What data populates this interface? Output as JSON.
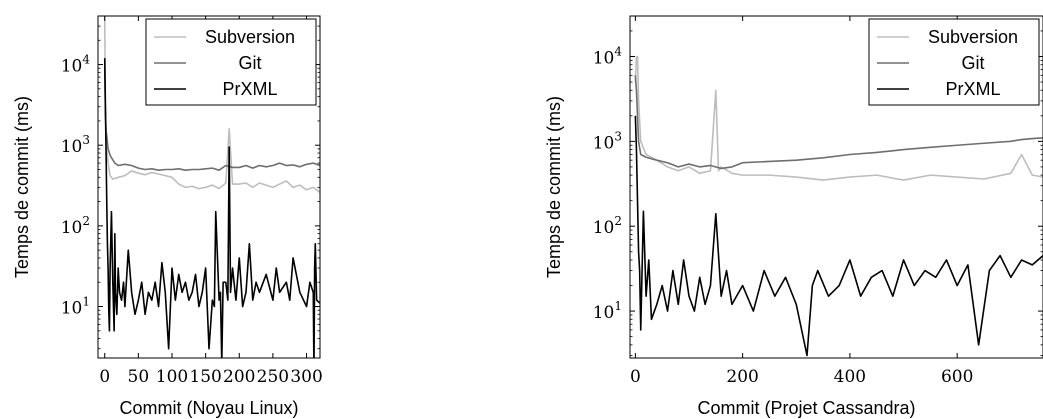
{
  "chart_data": [
    {
      "type": "line",
      "title": "",
      "xlabel": "Commit (Noyau Linux)",
      "ylabel": "Temps de commit (ms)",
      "xscale": "linear",
      "yscale": "log",
      "xlim": [
        -10,
        320
      ],
      "ylim": [
        2.3,
        40000
      ],
      "xticks": [
        0,
        50,
        100,
        150,
        200,
        250,
        300
      ],
      "xtick_labels": [
        "0",
        "50",
        "100",
        "150",
        "200",
        "250",
        "300"
      ],
      "yticks": [
        10,
        100,
        1000,
        10000
      ],
      "ytick_bases": [
        "10",
        "10",
        "10",
        "10"
      ],
      "ytick_exponents": [
        "1",
        "2",
        "3",
        "4"
      ],
      "legend_position": "top-right",
      "grid": false,
      "series": [
        {
          "name": "Subversion",
          "color": "#bdbdbd",
          "x": [
            0,
            1,
            2,
            3,
            5,
            8,
            12,
            20,
            30,
            40,
            50,
            60,
            70,
            80,
            90,
            100,
            110,
            120,
            130,
            140,
            150,
            160,
            170,
            180,
            185,
            190,
            200,
            210,
            220,
            230,
            240,
            250,
            260,
            270,
            280,
            290,
            300,
            310,
            320
          ],
          "y": [
            40000,
            3000,
            1500,
            900,
            600,
            420,
            380,
            400,
            420,
            480,
            450,
            430,
            460,
            440,
            420,
            400,
            330,
            300,
            310,
            290,
            300,
            320,
            290,
            340,
            1600,
            330,
            330,
            340,
            300,
            340,
            320,
            300,
            330,
            360,
            300,
            320,
            280,
            300,
            260
          ]
        },
        {
          "name": "Git",
          "color": "#6e6e6e",
          "x": [
            0,
            1,
            2,
            3,
            5,
            8,
            10,
            15,
            20,
            30,
            40,
            50,
            60,
            70,
            80,
            90,
            100,
            110,
            120,
            130,
            140,
            150,
            160,
            170,
            180,
            190,
            200,
            210,
            220,
            230,
            240,
            250,
            260,
            270,
            280,
            290,
            300,
            310,
            320
          ],
          "y": [
            9000,
            2500,
            1500,
            1300,
            900,
            750,
            700,
            600,
            560,
            580,
            560,
            520,
            500,
            510,
            490,
            500,
            500,
            510,
            490,
            500,
            500,
            510,
            520,
            490,
            560,
            530,
            530,
            560,
            520,
            560,
            540,
            560,
            600,
            560,
            570,
            540,
            580,
            600,
            560
          ]
        },
        {
          "name": "PrXML",
          "color": "#000000",
          "x": [
            0,
            1,
            2,
            3,
            4,
            5,
            6,
            7,
            8,
            10,
            12,
            14,
            15,
            16,
            18,
            20,
            22,
            25,
            28,
            30,
            35,
            40,
            45,
            50,
            55,
            60,
            65,
            70,
            75,
            80,
            85,
            90,
            95,
            100,
            105,
            110,
            115,
            120,
            125,
            130,
            135,
            140,
            145,
            150,
            155,
            160,
            163,
            165,
            170,
            172,
            174,
            176,
            180,
            183,
            185,
            187,
            190,
            195,
            200,
            205,
            210,
            215,
            220,
            225,
            230,
            240,
            250,
            255,
            260,
            270,
            275,
            280,
            290,
            300,
            305,
            310,
            311,
            312,
            313,
            315,
            320
          ],
          "y": [
            12000,
            3000,
            800,
            200,
            60,
            30,
            9,
            5,
            30,
            150,
            20,
            5,
            80,
            15,
            8,
            30,
            15,
            12,
            20,
            10,
            50,
            15,
            8,
            12,
            20,
            8,
            15,
            12,
            20,
            10,
            35,
            15,
            3,
            30,
            12,
            25,
            15,
            20,
            12,
            15,
            25,
            10,
            15,
            30,
            3,
            12,
            10,
            150,
            12,
            15,
            2,
            20,
            20,
            12,
            950,
            15,
            30,
            12,
            40,
            10,
            15,
            60,
            12,
            20,
            15,
            25,
            12,
            30,
            15,
            20,
            12,
            40,
            15,
            10,
            20,
            15,
            1.5,
            30,
            60,
            12,
            11
          ]
        }
      ]
    },
    {
      "type": "line",
      "title": "",
      "xlabel": "Commit (Projet Cassandra)",
      "ylabel": "Temps de commit (ms)",
      "xscale": "linear",
      "yscale": "log",
      "xlim": [
        -10,
        760
      ],
      "ylim": [
        2.8,
        30000
      ],
      "xticks": [
        0,
        200,
        400,
        600
      ],
      "xtick_labels": [
        "0",
        "200",
        "400",
        "600"
      ],
      "yticks": [
        10,
        100,
        1000,
        10000
      ],
      "ytick_bases": [
        "10",
        "10",
        "10",
        "10"
      ],
      "ytick_exponents": [
        "1",
        "2",
        "3",
        "4"
      ],
      "legend_position": "top-right",
      "grid": false,
      "series": [
        {
          "name": "Subversion",
          "color": "#bdbdbd",
          "x": [
            0,
            2,
            4,
            6,
            10,
            20,
            40,
            60,
            80,
            100,
            120,
            140,
            150,
            155,
            160,
            180,
            200,
            250,
            300,
            350,
            400,
            450,
            500,
            550,
            600,
            650,
            700,
            720,
            740,
            760
          ],
          "y": [
            5000,
            10000,
            10000,
            3000,
            1000,
            700,
            600,
            500,
            450,
            500,
            420,
            450,
            4000,
            450,
            500,
            420,
            400,
            400,
            380,
            350,
            380,
            400,
            350,
            400,
            380,
            360,
            420,
            700,
            400,
            380
          ]
        },
        {
          "name": "Git",
          "color": "#6e6e6e",
          "x": [
            0,
            2,
            4,
            6,
            10,
            20,
            40,
            60,
            80,
            100,
            120,
            140,
            160,
            180,
            200,
            250,
            300,
            350,
            400,
            450,
            500,
            550,
            600,
            650,
            700,
            720,
            740,
            760
          ],
          "y": [
            6000,
            4000,
            2000,
            1000,
            700,
            650,
            600,
            560,
            500,
            540,
            500,
            520,
            480,
            500,
            560,
            580,
            600,
            640,
            700,
            740,
            800,
            850,
            900,
            950,
            1000,
            1050,
            1080,
            1100
          ]
        },
        {
          "name": "PrXML",
          "color": "#000000",
          "x": [
            0,
            2,
            4,
            6,
            8,
            10,
            15,
            20,
            25,
            30,
            40,
            50,
            60,
            70,
            80,
            90,
            100,
            110,
            120,
            130,
            140,
            150,
            160,
            170,
            180,
            200,
            220,
            240,
            260,
            280,
            300,
            320,
            330,
            340,
            360,
            380,
            400,
            420,
            440,
            460,
            480,
            500,
            520,
            540,
            560,
            580,
            600,
            620,
            640,
            660,
            680,
            700,
            720,
            740,
            760
          ],
          "y": [
            2000,
            800,
            200,
            50,
            30,
            6,
            150,
            15,
            40,
            8,
            12,
            20,
            10,
            30,
            12,
            40,
            15,
            10,
            25,
            12,
            20,
            140,
            15,
            30,
            12,
            20,
            10,
            30,
            15,
            25,
            12,
            3,
            20,
            30,
            15,
            20,
            40,
            15,
            25,
            30,
            15,
            40,
            20,
            30,
            25,
            40,
            20,
            35,
            4,
            30,
            45,
            25,
            40,
            35,
            45
          ]
        }
      ]
    }
  ]
}
